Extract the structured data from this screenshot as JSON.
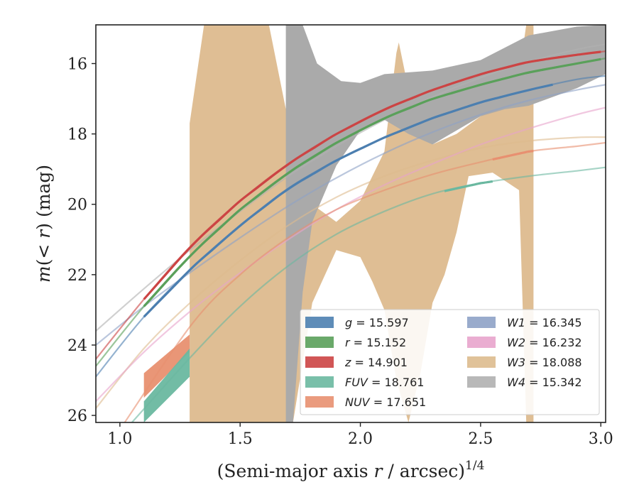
{
  "chart_data": {
    "type": "line",
    "xlabel_main": "(Semi-major axis ",
    "xlabel_var": "r",
    "xlabel_after": " / arcsec)",
    "xlabel_sup": "1/4",
    "ylabel_pre": "m(< ",
    "ylabel_var": "r",
    "ylabel_post": ") (mag)",
    "xlim": [
      0.9,
      3.02
    ],
    "ylim": [
      26.2,
      14.9
    ],
    "y_inverted": true,
    "x_ticks": [
      1.0,
      1.5,
      2.0,
      2.5,
      3.0
    ],
    "x_tick_labels": [
      "1.0",
      "1.5",
      "2.0",
      "2.5",
      "3.0"
    ],
    "y_ticks": [
      16,
      18,
      20,
      22,
      24,
      26
    ],
    "y_tick_labels": [
      "16",
      "18",
      "20",
      "22",
      "24",
      "26"
    ],
    "grid": false,
    "legend_placement": "lower-right",
    "series": [
      {
        "name": "g",
        "label_value": "15.597",
        "color": "#4c7fb0",
        "model_points": [
          [
            0.9,
            24.9
          ],
          [
            1.1,
            23.2
          ],
          [
            1.3,
            21.8
          ],
          [
            1.5,
            20.6
          ],
          [
            1.7,
            19.55
          ],
          [
            1.9,
            18.75
          ],
          [
            2.1,
            18.1
          ],
          [
            2.3,
            17.55
          ],
          [
            2.5,
            17.1
          ],
          [
            2.7,
            16.75
          ],
          [
            2.9,
            16.45
          ],
          [
            3.02,
            16.35
          ]
        ],
        "data_range": [
          1.1,
          2.8
        ]
      },
      {
        "name": "r",
        "label_value": "15.152",
        "color": "#5aa05a",
        "model_points": [
          [
            0.9,
            24.6
          ],
          [
            1.1,
            22.9
          ],
          [
            1.3,
            21.4
          ],
          [
            1.5,
            20.15
          ],
          [
            1.7,
            19.1
          ],
          [
            1.9,
            18.25
          ],
          [
            2.1,
            17.55
          ],
          [
            2.3,
            17.0
          ],
          [
            2.5,
            16.6
          ],
          [
            2.7,
            16.25
          ],
          [
            2.9,
            16.0
          ],
          [
            3.02,
            15.85
          ]
        ],
        "data_range": [
          1.1,
          3.0
        ]
      },
      {
        "name": "z",
        "label_value": "14.901",
        "color": "#cc4444",
        "model_points": [
          [
            0.9,
            24.4
          ],
          [
            1.1,
            22.7
          ],
          [
            1.3,
            21.15
          ],
          [
            1.5,
            19.9
          ],
          [
            1.7,
            18.85
          ],
          [
            1.9,
            18.0
          ],
          [
            2.1,
            17.3
          ],
          [
            2.3,
            16.75
          ],
          [
            2.5,
            16.3
          ],
          [
            2.7,
            15.95
          ],
          [
            2.9,
            15.75
          ],
          [
            3.02,
            15.65
          ]
        ],
        "data_range": [
          1.1,
          3.0
        ]
      },
      {
        "name": "FUV",
        "label_value": "18.761",
        "color": "#6ab8a0",
        "model_points": [
          [
            1.05,
            26.2
          ],
          [
            1.3,
            24.3
          ],
          [
            1.5,
            22.9
          ],
          [
            1.7,
            21.75
          ],
          [
            1.9,
            20.85
          ],
          [
            2.1,
            20.2
          ],
          [
            2.3,
            19.7
          ],
          [
            2.5,
            19.4
          ],
          [
            2.7,
            19.2
          ],
          [
            2.9,
            19.05
          ],
          [
            3.02,
            18.95
          ]
        ],
        "data_range": [
          2.35,
          2.55
        ]
      },
      {
        "name": "NUV",
        "label_value": "17.651",
        "color": "#e89070",
        "model_points": [
          [
            1.02,
            26.2
          ],
          [
            1.3,
            23.4
          ],
          [
            1.5,
            22.0
          ],
          [
            1.7,
            20.95
          ],
          [
            1.9,
            20.15
          ],
          [
            2.1,
            19.6
          ],
          [
            2.3,
            19.15
          ],
          [
            2.5,
            18.8
          ],
          [
            2.7,
            18.5
          ],
          [
            2.9,
            18.35
          ],
          [
            3.02,
            18.25
          ]
        ],
        "data_range": [
          2.55,
          2.72
        ]
      },
      {
        "name": "W1",
        "label_value": "16.345",
        "color": "#8ea2c6",
        "model_points": [
          [
            0.9,
            24.0
          ],
          [
            1.1,
            22.9
          ],
          [
            1.3,
            21.9
          ],
          [
            1.5,
            20.95
          ],
          [
            1.7,
            20.05
          ],
          [
            1.9,
            19.25
          ],
          [
            2.1,
            18.55
          ],
          [
            2.3,
            17.95
          ],
          [
            2.5,
            17.45
          ],
          [
            2.7,
            17.05
          ],
          [
            2.9,
            16.75
          ],
          [
            3.02,
            16.6
          ]
        ],
        "data_range": []
      },
      {
        "name": "W2",
        "label_value": "16.232",
        "color": "#e8a4cc",
        "model_points": [
          [
            0.9,
            25.6
          ],
          [
            1.1,
            24.2
          ],
          [
            1.3,
            23.0
          ],
          [
            1.5,
            21.95
          ],
          [
            1.7,
            21.0
          ],
          [
            1.9,
            20.15
          ],
          [
            2.1,
            19.45
          ],
          [
            2.3,
            18.85
          ],
          [
            2.5,
            18.3
          ],
          [
            2.7,
            17.85
          ],
          [
            2.9,
            17.45
          ],
          [
            3.02,
            17.25
          ]
        ],
        "data_range": []
      },
      {
        "name": "W3",
        "label_value": "18.088",
        "color": "#ddbb8e",
        "model_points": [
          [
            0.9,
            25.8
          ],
          [
            1.1,
            24.1
          ],
          [
            1.3,
            22.75
          ],
          [
            1.5,
            21.6
          ],
          [
            1.7,
            20.6
          ],
          [
            1.9,
            19.8
          ],
          [
            2.1,
            19.2
          ],
          [
            2.3,
            18.75
          ],
          [
            2.5,
            18.4
          ],
          [
            2.7,
            18.2
          ],
          [
            2.9,
            18.1
          ],
          [
            3.02,
            18.09
          ]
        ],
        "data_range": []
      },
      {
        "name": "W4",
        "label_value": "15.342",
        "color": "#b0b0b0",
        "model_points": [
          [
            0.9,
            23.6
          ],
          [
            1.1,
            22.4
          ],
          [
            1.3,
            21.25
          ],
          [
            1.5,
            20.2
          ],
          [
            1.7,
            19.2
          ],
          [
            1.9,
            18.35
          ],
          [
            2.1,
            17.6
          ],
          [
            2.3,
            16.95
          ],
          [
            2.5,
            16.4
          ],
          [
            2.7,
            15.95
          ],
          [
            2.9,
            15.6
          ],
          [
            3.02,
            15.45
          ]
        ],
        "data_range": []
      }
    ],
    "bands": [
      {
        "name": "W3",
        "color": "#ddbb8e",
        "opacity": 0.95,
        "upper": [
          [
            1.29,
            17.7
          ],
          [
            1.35,
            14.9
          ],
          [
            1.62,
            14.9
          ],
          [
            1.69,
            17.3
          ],
          [
            1.7,
            16.3
          ],
          [
            1.75,
            18.8
          ],
          [
            1.8,
            20.0
          ],
          [
            1.9,
            20.5
          ],
          [
            2.0,
            19.9
          ],
          [
            2.1,
            18.5
          ],
          [
            2.15,
            15.7
          ],
          [
            2.16,
            15.4
          ],
          [
            2.22,
            17.4
          ],
          [
            2.3,
            18.3
          ],
          [
            2.4,
            18.0
          ],
          [
            2.5,
            17.5
          ],
          [
            2.6,
            17.2
          ],
          [
            2.65,
            16.8
          ],
          [
            2.69,
            14.9
          ],
          [
            2.72,
            14.9
          ]
        ],
        "lower": [
          [
            2.72,
            26.2
          ],
          [
            2.69,
            26.2
          ],
          [
            2.66,
            19.6
          ],
          [
            2.55,
            19.1
          ],
          [
            2.45,
            19.2
          ],
          [
            2.4,
            20.8
          ],
          [
            2.35,
            22.0
          ],
          [
            2.3,
            22.8
          ],
          [
            2.25,
            24.8
          ],
          [
            2.2,
            26.2
          ],
          [
            2.15,
            25.0
          ],
          [
            2.1,
            23.0
          ],
          [
            2.05,
            22.2
          ],
          [
            2.0,
            21.5
          ],
          [
            1.9,
            21.3
          ],
          [
            1.8,
            22.8
          ],
          [
            1.72,
            26.2
          ],
          [
            1.29,
            26.2
          ]
        ]
      },
      {
        "name": "W4",
        "color": "#aaaaaa",
        "opacity": 1,
        "upper": [
          [
            1.69,
            14.9
          ],
          [
            1.76,
            14.9
          ],
          [
            1.82,
            16.0
          ],
          [
            1.92,
            16.5
          ],
          [
            2.0,
            16.55
          ],
          [
            2.1,
            16.3
          ],
          [
            2.3,
            16.2
          ],
          [
            2.5,
            15.9
          ],
          [
            2.7,
            15.2
          ],
          [
            2.9,
            14.95
          ],
          [
            3.02,
            14.9
          ]
        ],
        "lower": [
          [
            3.02,
            16.3
          ],
          [
            2.9,
            16.7
          ],
          [
            2.7,
            17.2
          ],
          [
            2.6,
            17.3
          ],
          [
            2.5,
            17.5
          ],
          [
            2.4,
            17.9
          ],
          [
            2.3,
            18.3
          ],
          [
            2.2,
            18.0
          ],
          [
            2.1,
            17.6
          ],
          [
            2.0,
            17.9
          ],
          [
            1.9,
            18.9
          ],
          [
            1.8,
            20.5
          ],
          [
            1.76,
            22.5
          ],
          [
            1.72,
            26.2
          ],
          [
            1.69,
            26.2
          ]
        ]
      },
      {
        "name": "NUV",
        "color": "#e89070",
        "opacity": 0.95,
        "upper": [
          [
            1.1,
            24.8
          ],
          [
            1.29,
            23.7
          ]
        ],
        "lower": [
          [
            1.29,
            24.2
          ],
          [
            1.1,
            25.5
          ]
        ]
      },
      {
        "name": "FUV",
        "color": "#6ab8a0",
        "opacity": 0.95,
        "upper": [
          [
            1.1,
            25.6
          ],
          [
            1.29,
            24.1
          ]
        ],
        "lower": [
          [
            1.29,
            24.9
          ],
          [
            1.1,
            26.2
          ]
        ]
      }
    ],
    "legend": {
      "columns": [
        [
          "g",
          "r",
          "z",
          "FUV",
          "NUV"
        ],
        [
          "W1",
          "W2",
          "W3",
          "W4"
        ]
      ]
    }
  }
}
